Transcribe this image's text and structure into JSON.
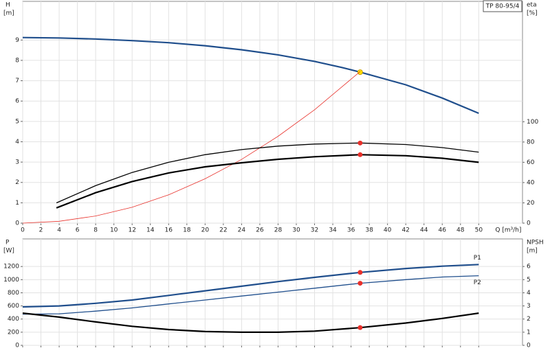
{
  "chart_data": [
    {
      "type": "line",
      "title": "TP 80-95/4",
      "ylabel": "H",
      "yunit": "[m]",
      "y2label": "eta",
      "y2unit": "[%]",
      "xlabel": "Q [m³/h]",
      "xlim": [
        0,
        54.8
      ],
      "xticks": [
        0,
        2,
        4,
        6,
        8,
        10,
        12,
        14,
        16,
        18,
        20,
        22,
        24,
        26,
        28,
        30,
        32,
        34,
        36,
        38,
        40,
        42,
        44,
        46,
        48,
        50
      ],
      "xtick_labels": true,
      "ylim": [
        0,
        10.9
      ],
      "yticks": [
        0,
        1,
        2,
        3,
        4,
        5,
        6,
        7,
        8,
        9
      ],
      "y2lim": [
        0,
        218.7
      ],
      "y2ticks": [
        0,
        20,
        40,
        60,
        80,
        100
      ],
      "grid": true,
      "duty_x": 37,
      "series": [
        {
          "color": "#1f4e8c",
          "weight": "bold",
          "marker_color": "#ffe000",
          "x": [
            0,
            4,
            8,
            12,
            16,
            20,
            24,
            28,
            32,
            35,
            37,
            42,
            46,
            50
          ],
          "values": [
            9.12,
            9.1,
            9.05,
            8.97,
            8.87,
            8.72,
            8.52,
            8.27,
            7.95,
            7.65,
            7.42,
            6.8,
            6.15,
            5.4
          ]
        },
        {
          "color": "#e8302a",
          "weight": "thin",
          "x": [
            0,
            4,
            8,
            12,
            16,
            20,
            24,
            28,
            32,
            37
          ],
          "values": [
            0,
            0.09,
            0.35,
            0.78,
            1.39,
            2.18,
            3.13,
            4.27,
            5.57,
            7.45
          ]
        },
        {
          "color": "#000000",
          "weight": "normal",
          "axis": "y2",
          "marker_color": "#e8302a",
          "x": [
            3.7,
            8,
            12,
            16,
            20,
            24,
            28,
            32,
            37,
            42,
            46,
            50
          ],
          "values": [
            20,
            37,
            50,
            60,
            67.5,
            72.5,
            76,
            78,
            79,
            77.5,
            74.5,
            70
          ]
        },
        {
          "color": "#000000",
          "weight": "bold",
          "axis": "y2",
          "marker_color": "#e8302a",
          "x": [
            3.7,
            8,
            12,
            16,
            20,
            24,
            28,
            32,
            37,
            42,
            46,
            50
          ],
          "values": [
            15,
            30,
            41,
            49.5,
            55.5,
            59.5,
            63,
            65.5,
            67.5,
            66.5,
            64,
            60
          ]
        }
      ]
    },
    {
      "type": "line",
      "ylabel": "P",
      "yunit": "[W]",
      "y2label": "NPSH",
      "y2unit": "[m]",
      "xlim": [
        0,
        54.8
      ],
      "xticks": [
        0,
        2,
        4,
        6,
        8,
        10,
        12,
        14,
        16,
        18,
        20,
        22,
        24,
        26,
        28,
        30,
        32,
        34,
        36,
        38,
        40,
        42,
        44,
        46,
        48,
        50
      ],
      "xtick_labels": false,
      "ylim": [
        0,
        1620
      ],
      "yticks": [
        0,
        200,
        400,
        600,
        800,
        1000,
        1200
      ],
      "y2lim": [
        0,
        8.1
      ],
      "y2ticks": [
        0,
        1,
        2,
        3,
        4,
        5,
        6
      ],
      "grid": true,
      "duty_x": 37,
      "series": [
        {
          "name": "P1",
          "color": "#1f4e8c",
          "weight": "bold",
          "marker_color": "#e8302a",
          "x": [
            0,
            4,
            8,
            12,
            16,
            20,
            24,
            28,
            32,
            37,
            42,
            46,
            50
          ],
          "values": [
            585,
            600,
            640,
            690,
            760,
            830,
            900,
            970,
            1035,
            1110,
            1170,
            1205,
            1230
          ]
        },
        {
          "name": "P2",
          "color": "#1f4e8c",
          "weight": "normal",
          "marker_color": "#e8302a",
          "x": [
            0,
            4,
            8,
            12,
            16,
            20,
            24,
            28,
            32,
            37,
            42,
            46,
            50
          ],
          "values": [
            475,
            480,
            520,
            570,
            630,
            690,
            750,
            810,
            870,
            945,
            1000,
            1040,
            1060
          ]
        },
        {
          "color": "#000000",
          "weight": "bold",
          "axis": "y2",
          "marker_color": "#e8302a",
          "x": [
            0,
            4,
            8,
            12,
            16,
            20,
            24,
            28,
            32,
            37,
            42,
            46,
            50
          ],
          "values": [
            2.45,
            2.15,
            1.78,
            1.45,
            1.2,
            1.05,
            1.0,
            1.0,
            1.08,
            1.35,
            1.7,
            2.05,
            2.45
          ]
        }
      ]
    }
  ]
}
